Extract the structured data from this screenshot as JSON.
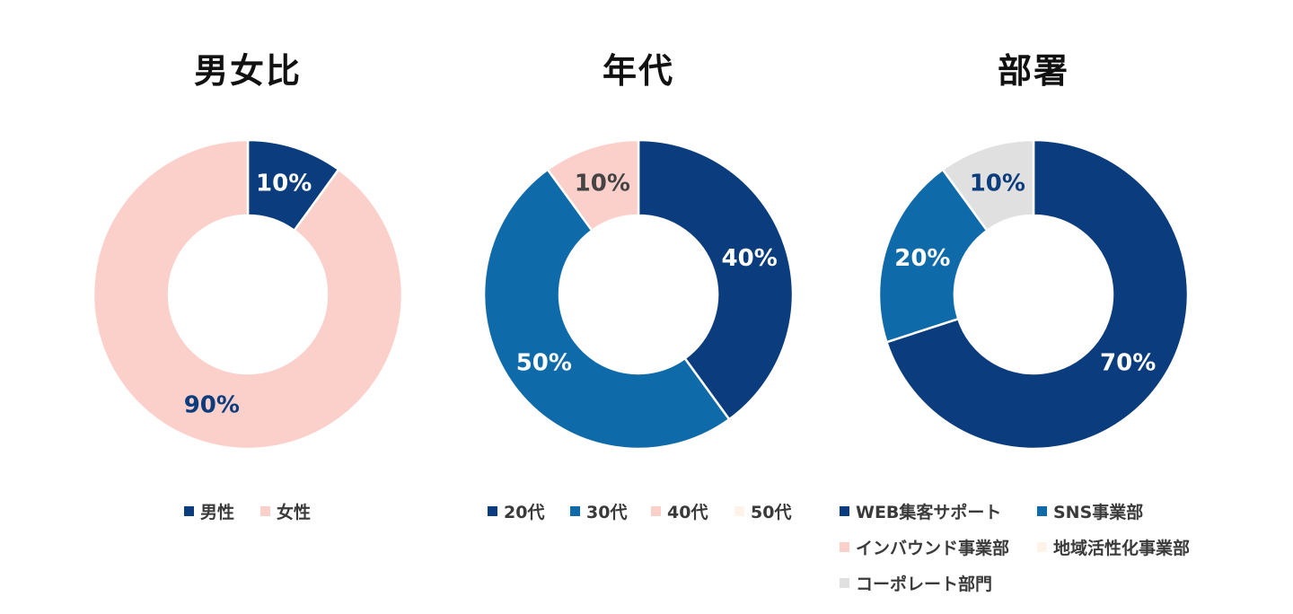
{
  "chart_data": [
    {
      "type": "pie",
      "title": "男女比",
      "categories": [
        "男性",
        "女性"
      ],
      "values": [
        10,
        90
      ],
      "value_labels": [
        "10%",
        "90%"
      ],
      "colors": [
        "#0b3d7e",
        "#fcd0ca"
      ],
      "label_colors": [
        "#ffffff",
        "#0b3d7e"
      ],
      "donut": true,
      "legend": "bottom"
    },
    {
      "type": "pie",
      "title": "年代",
      "categories": [
        "20代",
        "30代",
        "40代",
        "50代"
      ],
      "values": [
        40,
        50,
        10,
        0
      ],
      "value_labels": [
        "40%",
        "50%",
        "10%",
        ""
      ],
      "colors": [
        "#0b3d7e",
        "#0e6aa9",
        "#fcd0ca",
        "#fdf3e8"
      ],
      "label_colors": [
        "#ffffff",
        "#ffffff",
        "#444444",
        "#444444"
      ],
      "donut": true,
      "legend": "bottom"
    },
    {
      "type": "pie",
      "title": "部署",
      "categories": [
        "WEB集客サポート",
        "SNS事業部",
        "インバウンド事業部",
        "地域活性化事業部",
        "コーポレート部門"
      ],
      "values": [
        70,
        20,
        0,
        0,
        10
      ],
      "value_labels": [
        "70%",
        "20%",
        "",
        "",
        "10%"
      ],
      "colors": [
        "#0b3d7e",
        "#0e6aa9",
        "#fcd0ca",
        "#fdf3e8",
        "#e0e0e0"
      ],
      "label_colors": [
        "#ffffff",
        "#ffffff",
        "#444444",
        "#444444",
        "#0b3d7e"
      ],
      "donut": true,
      "legend": "bottom"
    }
  ]
}
